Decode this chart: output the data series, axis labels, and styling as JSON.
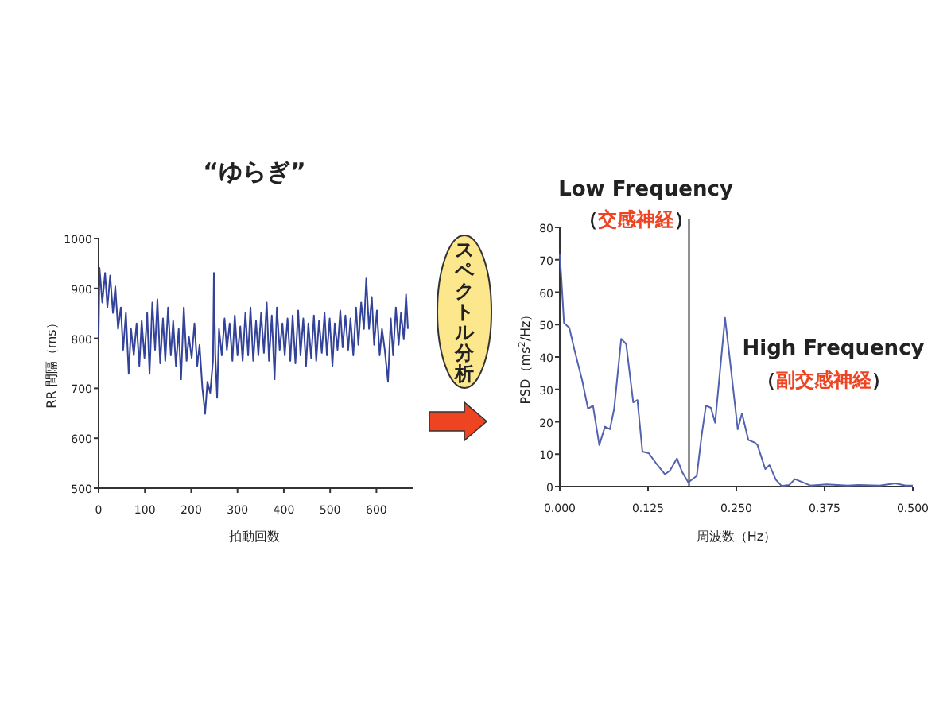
{
  "chart_data": [
    {
      "type": "line",
      "title": "“ゆらぎ”",
      "xlabel": "拍動回数",
      "ylabel": "RR 間隔（ms）",
      "color": "#34439a",
      "xlim": [
        0,
        680
      ],
      "xticks": [
        0,
        100,
        200,
        300,
        400,
        500,
        600
      ],
      "ylim": [
        500,
        1000
      ],
      "yticks": [
        500,
        600,
        700,
        800,
        900,
        1000
      ],
      "x": [
        0,
        2,
        8,
        14,
        19,
        25,
        31,
        36,
        42,
        48,
        53,
        59,
        65,
        70,
        76,
        82,
        88,
        93,
        99,
        105,
        110,
        116,
        122,
        127,
        133,
        139,
        144,
        150,
        156,
        161,
        167,
        173,
        178,
        184,
        190,
        195,
        201,
        207,
        213,
        218,
        224,
        230,
        235,
        241,
        247,
        249,
        252,
        256,
        260,
        266,
        272,
        277,
        283,
        289,
        294,
        300,
        306,
        311,
        317,
        323,
        328,
        334,
        340,
        345,
        351,
        357,
        363,
        368,
        374,
        380,
        385,
        391,
        397,
        402,
        408,
        414,
        419,
        425,
        431,
        436,
        442,
        448,
        453,
        459,
        465,
        470,
        476,
        482,
        488,
        493,
        499,
        505,
        510,
        516,
        522,
        527,
        533,
        539,
        544,
        550,
        556,
        561,
        567,
        573,
        578,
        584,
        590,
        595,
        601,
        607,
        612,
        618,
        625,
        631,
        636,
        642,
        648,
        653,
        659,
        664,
        668
      ],
      "values": [
        803,
        941,
        872,
        931,
        862,
        926,
        851,
        904,
        819,
        862,
        777,
        851,
        729,
        819,
        766,
        830,
        745,
        835,
        761,
        851,
        729,
        872,
        777,
        878,
        750,
        840,
        755,
        862,
        766,
        835,
        745,
        819,
        718,
        862,
        755,
        803,
        761,
        830,
        745,
        787,
        702,
        649,
        713,
        691,
        755,
        931,
        766,
        681,
        819,
        766,
        840,
        777,
        830,
        755,
        846,
        766,
        824,
        755,
        851,
        766,
        862,
        755,
        835,
        766,
        851,
        771,
        872,
        755,
        846,
        718,
        862,
        777,
        830,
        766,
        840,
        755,
        846,
        750,
        856,
        766,
        840,
        745,
        830,
        761,
        846,
        755,
        835,
        771,
        851,
        766,
        840,
        745,
        830,
        777,
        856,
        782,
        846,
        777,
        840,
        766,
        862,
        787,
        872,
        819,
        920,
        819,
        883,
        787,
        856,
        766,
        819,
        777,
        713,
        840,
        766,
        862,
        787,
        851,
        798,
        888,
        819
      ]
    },
    {
      "type": "line",
      "xlabel": "周波数（Hz）",
      "ylabel": "PSD（ms$^{2}$/Hz）",
      "color": "#5262b0",
      "xlim": [
        0,
        0.5
      ],
      "xticks": [
        {
          "value": 0,
          "label": "0.000"
        },
        {
          "value": 0.125,
          "label": "0.125"
        },
        {
          "value": 0.25,
          "label": "0.250"
        },
        {
          "value": 0.375,
          "label": "0.375"
        },
        {
          "value": 0.5,
          "label": "0.500"
        }
      ],
      "ylim": [
        0,
        80
      ],
      "yticks": [
        0,
        10,
        20,
        30,
        40,
        50,
        60,
        70,
        80
      ],
      "x": [
        0,
        0.002,
        0.006,
        0.0135,
        0.021,
        0.032,
        0.04,
        0.047,
        0.056,
        0.064,
        0.071,
        0.077,
        0.087,
        0.094,
        0.104,
        0.11,
        0.117,
        0.126,
        0.137,
        0.149,
        0.156,
        0.166,
        0.173,
        0.182,
        0.194,
        0.201,
        0.207,
        0.214,
        0.22,
        0.234,
        0.241,
        0.252,
        0.258,
        0.267,
        0.276,
        0.28,
        0.291,
        0.297,
        0.306,
        0.314,
        0.325,
        0.333,
        0.344,
        0.355,
        0.378,
        0.408,
        0.423,
        0.453,
        0.475,
        0.49,
        0.5
      ],
      "values": [
        71.8,
        65,
        50.5,
        49,
        42,
        32.5,
        24,
        25,
        12.8,
        18.5,
        17.7,
        24,
        45.6,
        44,
        26,
        26.7,
        10.8,
        10.3,
        7,
        3.8,
        4.9,
        8.7,
        4.6,
        1.3,
        3.3,
        16,
        25,
        24.3,
        19.7,
        52.1,
        39,
        17.7,
        22.6,
        14.4,
        13.6,
        12.8,
        5.4,
        6.6,
        2.1,
        0.2,
        0.5,
        2.3,
        1.3,
        0.3,
        0.7,
        0.3,
        0.5,
        0.3,
        1,
        0.3,
        0.3
      ],
      "ref_lines": [
        {
          "axis": "x",
          "value": 0.183
        }
      ],
      "annotations": [
        "Low Frequency",
        "（交感神経）",
        "High Frequency",
        "（副交感神経）"
      ]
    },
    {
      "type": "other",
      "annotations": [
        "スペクトル分析"
      ]
    }
  ]
}
